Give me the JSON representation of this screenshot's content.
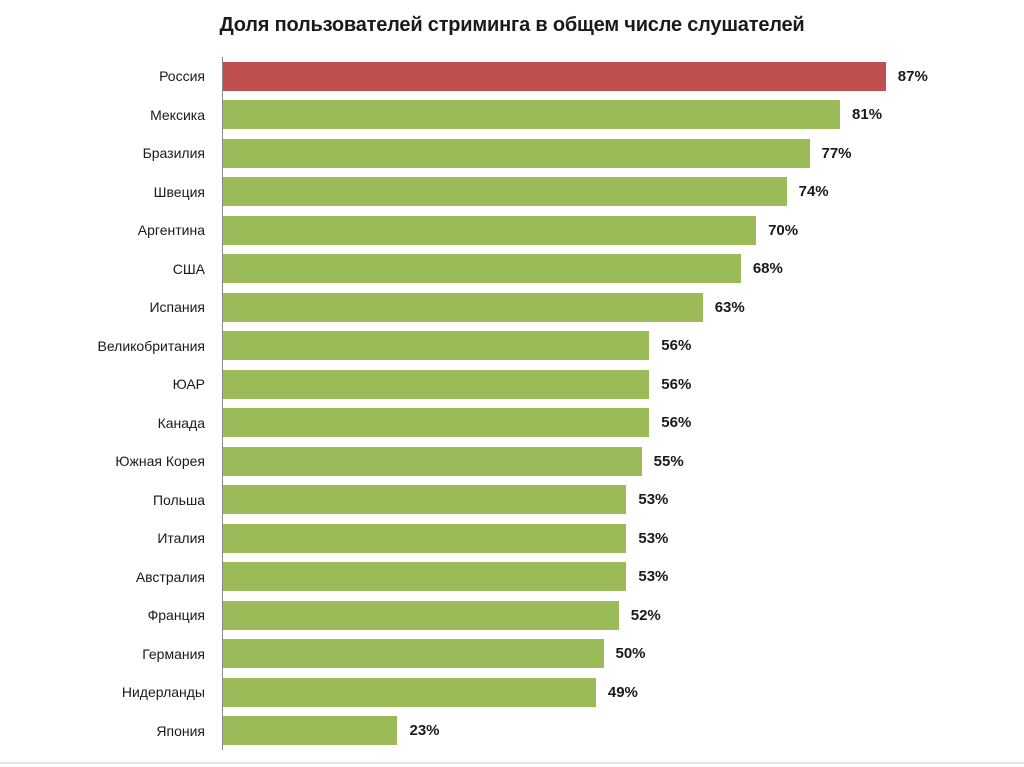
{
  "chart_data": {
    "type": "bar",
    "orientation": "horizontal",
    "title": "Доля пользователей стриминга в общем числе слушателей",
    "categories": [
      "Россия",
      "Мексика",
      "Бразилия",
      "Швеция",
      "Аргентина",
      "США",
      "Испания",
      "Великобритания",
      "ЮАР",
      "Канада",
      "Южная Корея",
      "Польша",
      "Италия",
      "Австралия",
      "Франция",
      "Германия",
      "Нидерланды",
      "Япония"
    ],
    "values": [
      87,
      81,
      77,
      74,
      70,
      68,
      63,
      56,
      56,
      56,
      55,
      53,
      53,
      53,
      52,
      50,
      49,
      23
    ],
    "value_suffix": "%",
    "xlim": [
      0,
      100
    ],
    "grid": false,
    "legend": "none",
    "highlight_index": 0,
    "highlight_category": "Россия",
    "colors": {
      "bar": "#9BBB59",
      "highlight": "#C0504D",
      "axis_line": "#8a8a8a",
      "text": "#1a1a1a"
    }
  }
}
